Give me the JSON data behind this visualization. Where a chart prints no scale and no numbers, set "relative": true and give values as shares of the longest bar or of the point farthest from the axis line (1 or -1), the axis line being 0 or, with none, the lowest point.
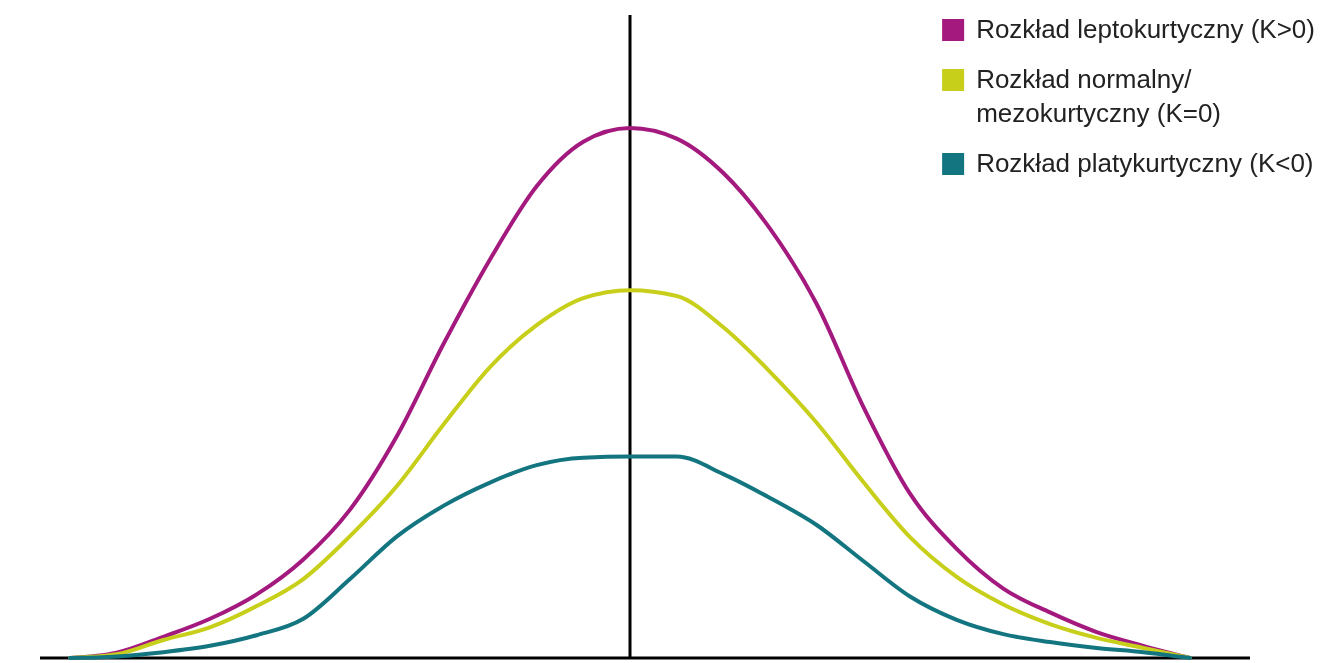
{
  "chart_data": {
    "type": "line",
    "relative": true,
    "legend": "top right",
    "marker": "none",
    "line_style": "solid",
    "grid": false,
    "categories": [
      null,
      null,
      null,
      null,
      null,
      null,
      null,
      null,
      null,
      null,
      null,
      null,
      null,
      null,
      null,
      null,
      null,
      null,
      null,
      null,
      null,
      null,
      null,
      null,
      null
    ],
    "series": [
      {
        "name": "Rozkład leptokurtyczny (K>0)",
        "color": "#a3197e",
        "values": [
          0,
          0.01,
          0.04,
          0.074,
          0.12,
          0.186,
          0.28,
          0.418,
          0.592,
          0.752,
          0.89,
          0.974,
          1,
          0.98,
          0.915,
          0.81,
          0.668,
          0.474,
          0.31,
          0.206,
          0.131,
          0.086,
          0.049,
          0.023,
          0
        ]
      },
      {
        "name": "Rozkład normalny/mezokurtyczny (K=0)",
        "color": "#c8cf1a",
        "values": [
          0,
          0.007,
          0.034,
          0.058,
          0.098,
          0.149,
          0.23,
          0.324,
          0.44,
          0.549,
          0.628,
          0.679,
          0.694,
          0.683,
          0.624,
          0.54,
          0.444,
          0.332,
          0.228,
          0.153,
          0.101,
          0.064,
          0.038,
          0.019,
          0
        ]
      },
      {
        "name": "Rozkład platykurtyczny (K<0)",
        "color": "#137580",
        "values": [
          0,
          0.003,
          0.011,
          0.023,
          0.043,
          0.074,
          0.149,
          0.229,
          0.287,
          0.331,
          0.364,
          0.378,
          0.38,
          0.38,
          0.347,
          0.302,
          0.251,
          0.183,
          0.116,
          0.072,
          0.045,
          0.03,
          0.019,
          0.011,
          0
        ]
      }
    ]
  }
}
